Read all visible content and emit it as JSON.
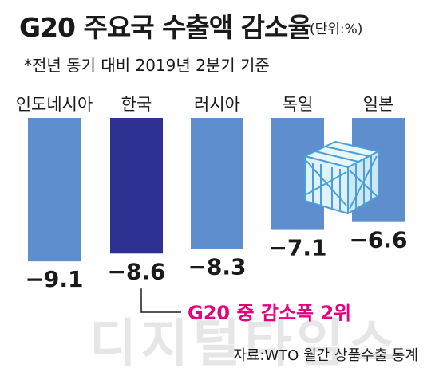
{
  "header": {
    "title": "G20 주요국 수출액 감소율",
    "unit": "(단위:%)",
    "subtitle": "*전년 동기 대비 2019년 2분기 기준"
  },
  "footer": {
    "source": "자료:WTO 월간 상품수출 통계",
    "watermark": "디지털타임스"
  },
  "colors": {
    "bar": "#5f8ecf",
    "highlight_bar": "#2e3192",
    "annotation": "#e5007e",
    "crate": "#4a9fd8"
  },
  "chart_data": {
    "type": "bar",
    "title": "G20 주요국 수출액 감소율",
    "categories": [
      "인도네시아",
      "한국",
      "러시아",
      "독일",
      "일본"
    ],
    "values": [
      -9.1,
      -8.6,
      -8.3,
      -7.1,
      -6.6
    ],
    "value_labels": [
      "−9.1",
      "−8.6",
      "−8.3",
      "−7.1",
      "−6.6"
    ],
    "highlight_index": 1,
    "ylim": [
      -10,
      0
    ],
    "grid": false,
    "annotation": {
      "text": "G20 중 감소폭 2위",
      "target_index": 1
    }
  },
  "icons": [
    "cargo-crate-icon"
  ]
}
